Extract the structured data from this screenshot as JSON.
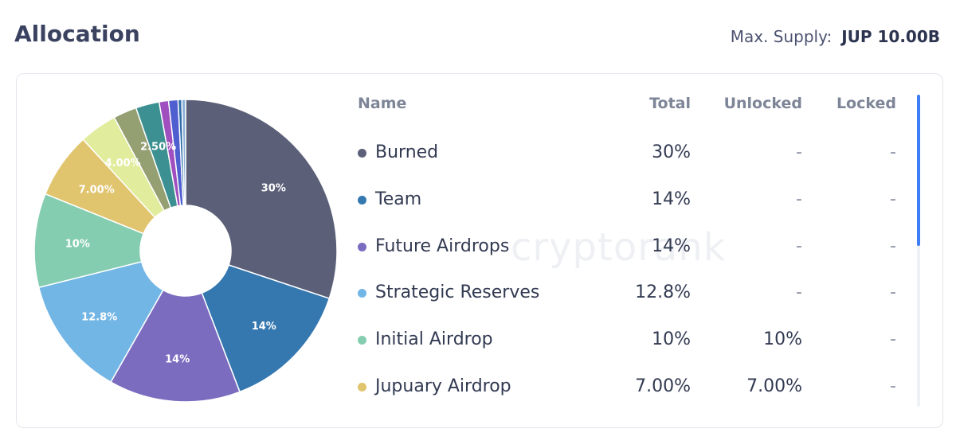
{
  "header": {
    "title": "Allocation",
    "supply_label": "Max. Supply:",
    "supply_value": "JUP 10.00B"
  },
  "watermark": "cryptorank",
  "table": {
    "columns": [
      "Name",
      "Total",
      "Unlocked",
      "Locked"
    ],
    "rows": [
      {
        "name": "Burned",
        "total": "30%",
        "unlocked": "-",
        "locked": "-",
        "color": "#5b6078"
      },
      {
        "name": "Team",
        "total": "14%",
        "unlocked": "-",
        "locked": "-",
        "color": "#3578b0"
      },
      {
        "name": "Future Airdrops",
        "total": "14%",
        "unlocked": "-",
        "locked": "-",
        "color": "#7b6cc0"
      },
      {
        "name": "Strategic Reserves",
        "total": "12.8%",
        "unlocked": "-",
        "locked": "-",
        "color": "#72b6e6"
      },
      {
        "name": "Initial Airdrop",
        "total": "10%",
        "unlocked": "10%",
        "locked": "-",
        "color": "#84cdb0"
      },
      {
        "name": "Jupuary Airdrop",
        "total": "7.00%",
        "unlocked": "7.00%",
        "locked": "-",
        "color": "#e0c46e"
      }
    ]
  },
  "chart_data": {
    "type": "pie",
    "donut": true,
    "slices": [
      {
        "value": 30,
        "label": "30%",
        "color": "#5b6078"
      },
      {
        "value": 14,
        "label": "14%",
        "color": "#3578b0"
      },
      {
        "value": 14,
        "label": "14%",
        "color": "#7b6cc0"
      },
      {
        "value": 12.8,
        "label": "12.8%",
        "color": "#72b6e6"
      },
      {
        "value": 10,
        "label": "10%",
        "color": "#84cdb0"
      },
      {
        "value": 7,
        "label": "7.00%",
        "color": "#e0c46e"
      },
      {
        "value": 4,
        "label": "4.00%",
        "color": "#e1ec9c"
      },
      {
        "value": 2.5,
        "label": "",
        "color": "#949f72"
      },
      {
        "value": 2.5,
        "label": "2.50%",
        "color": "#3d9091"
      },
      {
        "value": 1,
        "label": "",
        "color": "#a04fbf"
      },
      {
        "value": 1,
        "label": "",
        "color": "#4f5fcf"
      },
      {
        "value": 0.4,
        "label": "",
        "color": "#2e6ea8"
      },
      {
        "value": 0.4,
        "label": "",
        "color": "#8ab0d8"
      }
    ]
  }
}
